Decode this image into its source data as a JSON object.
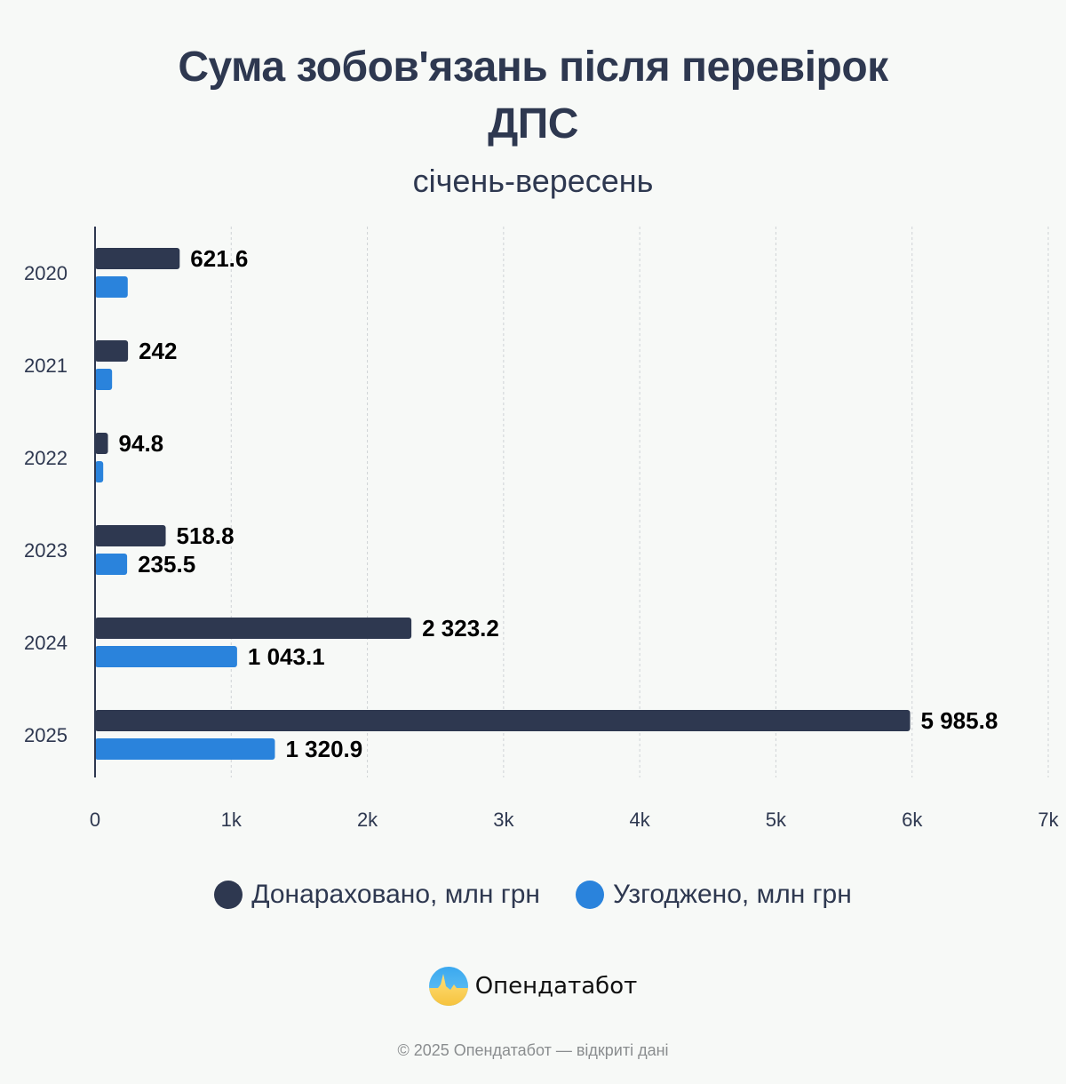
{
  "header": {
    "title_lines": [
      "Сума зобов'язань після перевірок",
      "ДПС"
    ],
    "subtitle": "січень-вересень"
  },
  "chart_data": {
    "type": "bar",
    "orientation": "horizontal",
    "title": "Сума зобов'язань після перевірок ДПС",
    "subtitle": "січень-вересень",
    "categories": [
      "2020",
      "2021",
      "2022",
      "2023",
      "2024",
      "2025"
    ],
    "series": [
      {
        "name": "Донараховано, млн грн",
        "color": "#2e3850",
        "values": [
          621.6,
          242,
          94.8,
          518.8,
          2323.2,
          5985.8
        ],
        "labels": [
          "621.6",
          "242",
          "94.8",
          "518.8",
          "2 323.2",
          "5 985.8"
        ]
      },
      {
        "name": "Узгоджено, млн грн",
        "color": "#2a83dc",
        "values": [
          240,
          125,
          60,
          235.5,
          1043.1,
          1320.9
        ],
        "labels": [
          null,
          null,
          null,
          "235.5",
          "1 043.1",
          "1 320.9"
        ]
      }
    ],
    "xlim": [
      0,
      7000
    ],
    "xticks": [
      0,
      1000,
      2000,
      3000,
      4000,
      5000,
      6000,
      7000
    ],
    "xtick_labels": [
      "0",
      "1k",
      "2k",
      "3k",
      "4k",
      "5k",
      "6k",
      "7k"
    ],
    "xlabel": "",
    "ylabel": "",
    "grid": "vertical dashed",
    "legend": "bottom-center"
  },
  "legend": {
    "items": [
      {
        "label": "Донараховано, млн грн",
        "color": "#2e3850"
      },
      {
        "label": "Узгоджено, млн грн",
        "color": "#2a83dc"
      }
    ]
  },
  "brand": {
    "name": "Опендатабот",
    "logo_icon": "opendatabot-logo"
  },
  "footer": {
    "text": "© 2025 Опендатабот — відкриті дані"
  }
}
